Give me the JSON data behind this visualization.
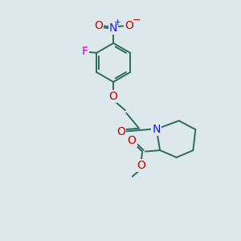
{
  "bg_color": "#dce8ec",
  "bond_color": "#2d6b5e",
  "atom_colors": {
    "O": "#cc0000",
    "N_nitro": "#1a1aff",
    "N_pip": "#1a1aff",
    "F": "#cc00cc"
  },
  "lw": 1.4,
  "fontsize": 9.5
}
